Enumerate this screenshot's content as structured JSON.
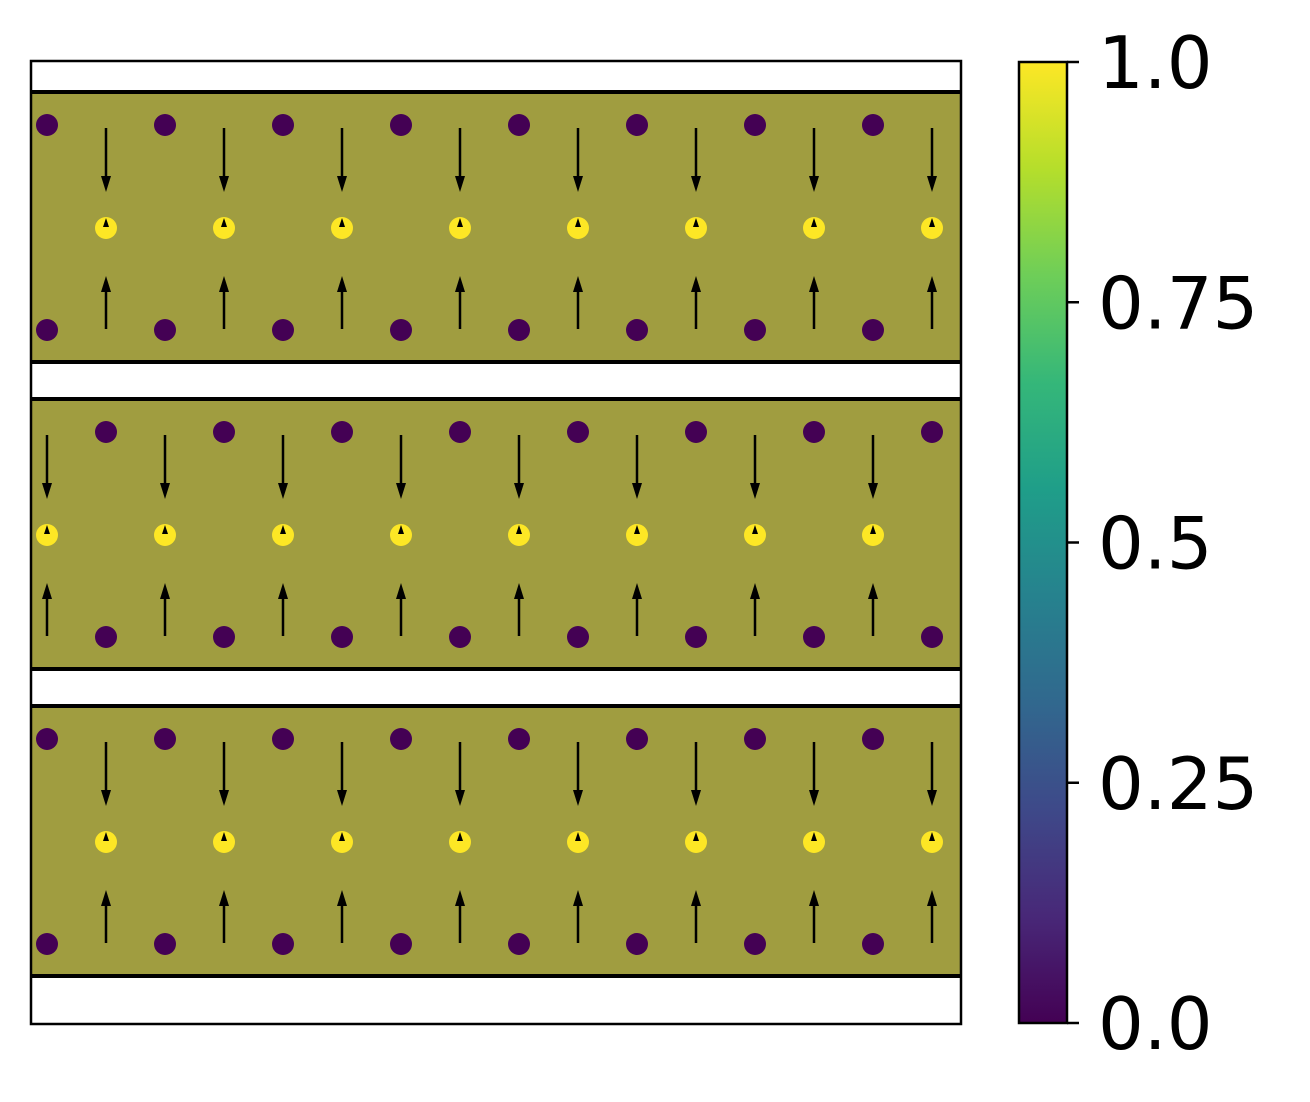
{
  "chart_data": {
    "type": "scatter",
    "axes_ticks_visible": false,
    "grid": false,
    "band_fill_color": "#a09d40",
    "band_border_color": "#000000",
    "marker_low_color": "#440154",
    "marker_high_color": "#fde725",
    "arrow_color": "#000000",
    "bands": [
      {
        "rows": [
          {
            "position": "top",
            "marker_columns": "odd",
            "marker_value": 0.0
          },
          {
            "position": "middle",
            "marker_columns": "even",
            "marker_value": 1.0
          },
          {
            "position": "bottom",
            "marker_columns": "odd",
            "marker_value": 0.0
          }
        ],
        "arrow_columns": "even",
        "arrows": {
          "upper": "down",
          "middle": "short-up",
          "lower": "up"
        }
      },
      {
        "rows": [
          {
            "position": "top",
            "marker_columns": "even",
            "marker_value": 0.0
          },
          {
            "position": "middle",
            "marker_columns": "odd",
            "marker_value": 1.0
          },
          {
            "position": "bottom",
            "marker_columns": "even",
            "marker_value": 0.0
          }
        ],
        "arrow_columns": "odd",
        "arrows": {
          "upper": "down",
          "middle": "short-up",
          "lower": "up"
        }
      },
      {
        "rows": [
          {
            "position": "top",
            "marker_columns": "odd",
            "marker_value": 0.0
          },
          {
            "position": "middle",
            "marker_columns": "even",
            "marker_value": 1.0
          },
          {
            "position": "bottom",
            "marker_columns": "odd",
            "marker_value": 0.0
          }
        ],
        "arrow_columns": "even",
        "arrows": {
          "upper": "down",
          "middle": "short-up",
          "lower": "up"
        }
      }
    ],
    "columns": 16,
    "colorbar": {
      "colormap": "viridis",
      "range": [
        0.0,
        1.0
      ],
      "ticks": [
        0.0,
        0.25,
        0.5,
        0.75,
        1.0
      ],
      "tick_labels": [
        "0.0",
        "0.25",
        "0.5",
        "0.75",
        "1.0"
      ],
      "position": "right",
      "stops": [
        "#440154",
        "#482878",
        "#3e4989",
        "#31688e",
        "#26828e",
        "#1f9e89",
        "#35b779",
        "#6ece58",
        "#b5de2b",
        "#fde725"
      ]
    }
  }
}
